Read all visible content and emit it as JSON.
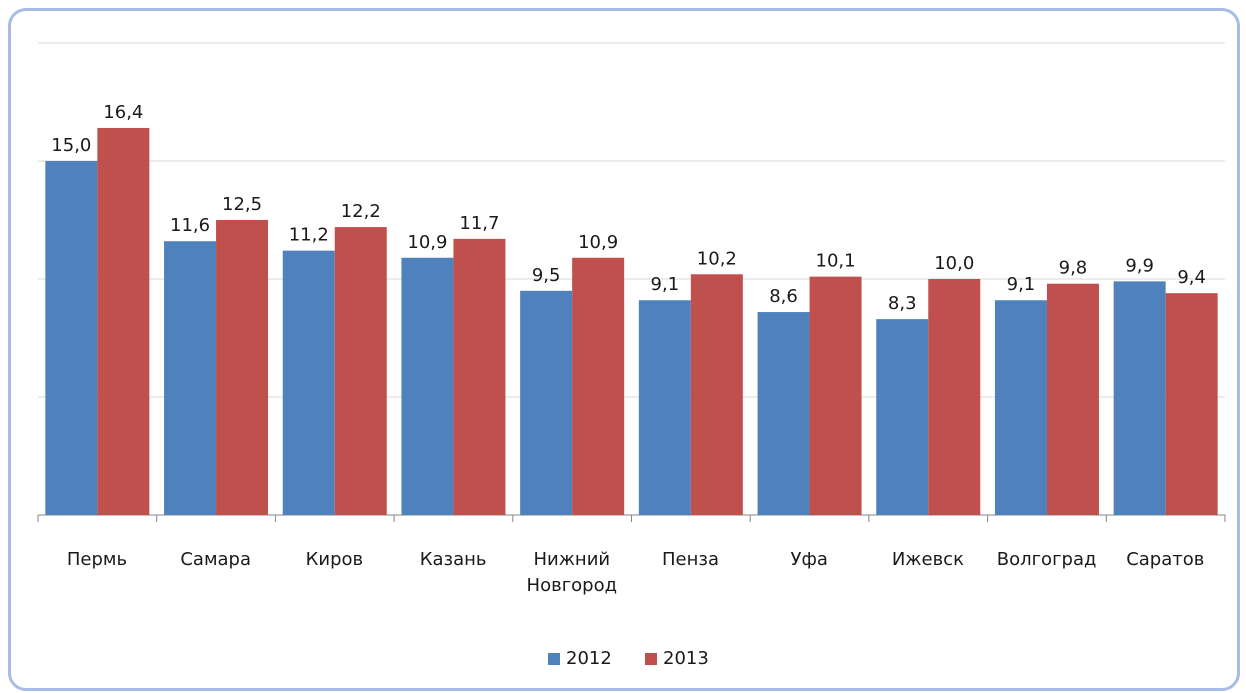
{
  "chart_data": {
    "type": "bar",
    "categories": [
      "Пермь",
      "Самара",
      "Киров",
      "Казань",
      "Нижний Новгород",
      "Пенза",
      "Уфа",
      "Ижевск",
      "Волгоград",
      "Саратов"
    ],
    "series": [
      {
        "name": "2012",
        "color": "#4f81bd",
        "values": [
          15.0,
          11.6,
          11.2,
          10.9,
          9.5,
          9.1,
          8.6,
          8.3,
          9.1,
          9.9
        ],
        "value_labels": [
          "15,0",
          "11,6",
          "11,2",
          "10,9",
          "9,5",
          "9,1",
          "8,6",
          "8,3",
          "9,1",
          "9,9"
        ]
      },
      {
        "name": "2013",
        "color": "#c0504d",
        "values": [
          16.4,
          12.5,
          12.2,
          11.7,
          10.9,
          10.2,
          10.1,
          10.0,
          9.8,
          9.4
        ],
        "value_labels": [
          "16,4",
          "12,5",
          "12,2",
          "11,7",
          "10,9",
          "10,2",
          "10,1",
          "10,0",
          "9,8",
          "9,4"
        ]
      }
    ],
    "ylim": [
      0,
      20
    ],
    "yticks": [
      0,
      5,
      10,
      15,
      20
    ],
    "grid": true,
    "legend": "bottom"
  }
}
